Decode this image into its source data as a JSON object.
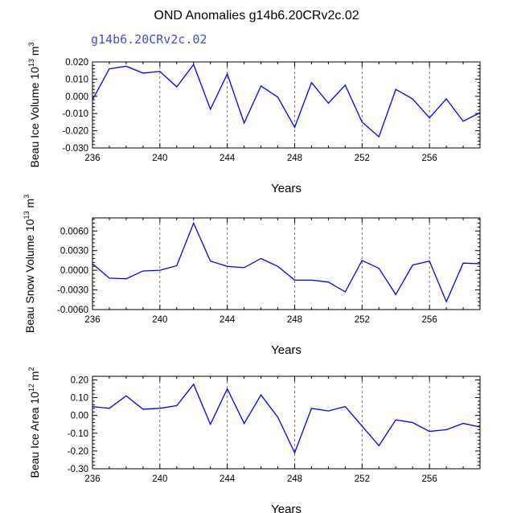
{
  "colors": {
    "line": "#0000ff",
    "subtitle": "#4b4bd2",
    "axis": "#000000",
    "ref_line": "#555555"
  },
  "figure": {
    "title": "OND Anomalies g14b6.20CRv2c.02",
    "subtitle": "g14b6.20CRv2c.02"
  },
  "chart_data": [
    {
      "type": "line",
      "title": "",
      "xlabel": "Years",
      "ylabel": {
        "text": "Beau Ice Volume 10",
        "exp": "13",
        "unit": " m",
        "unit_exp": "3"
      },
      "x": [
        236,
        237,
        238,
        239,
        240,
        241,
        242,
        243,
        244,
        245,
        246,
        247,
        248,
        249,
        250,
        251,
        252,
        253,
        254,
        255,
        256,
        257,
        258,
        259
      ],
      "series": [
        {
          "name": "Beau Ice Volume",
          "values": [
            -0.002,
            0.016,
            0.0175,
            0.0135,
            0.0145,
            0.0055,
            0.0185,
            -0.0075,
            0.013,
            -0.0155,
            0.006,
            -0.0005,
            -0.018,
            0.008,
            -0.004,
            0.0065,
            -0.015,
            -0.0235,
            0.004,
            -0.0015,
            -0.0125,
            -0.0015,
            -0.0145,
            -0.0095
          ]
        }
      ],
      "xlim": [
        236,
        259
      ],
      "ylim": [
        -0.03,
        0.02
      ],
      "xticks": [
        "236",
        "240",
        "244",
        "248",
        "252",
        "256"
      ],
      "yticks": [
        "0.020",
        "0.010",
        "0.000",
        "-0.010",
        "-0.020",
        "-0.030"
      ],
      "ref_lines_x": [
        240,
        244,
        248,
        252,
        256
      ]
    },
    {
      "type": "line",
      "title": "",
      "xlabel": "Years",
      "ylabel": {
        "text": "Beau Snow Volume 10",
        "exp": "13",
        "unit": " m",
        "unit_exp": "3"
      },
      "x": [
        236,
        237,
        238,
        239,
        240,
        241,
        242,
        243,
        244,
        245,
        246,
        247,
        248,
        249,
        250,
        251,
        252,
        253,
        254,
        255,
        256,
        257,
        258,
        259
      ],
      "series": [
        {
          "name": "Beau Snow Volume",
          "values": [
            0.001,
            -0.0012,
            -0.0013,
            -0.0001,
            0.0,
            0.0007,
            0.0072,
            0.0014,
            0.0006,
            0.0004,
            0.0018,
            0.0006,
            -0.0015,
            -0.0015,
            -0.0018,
            -0.0033,
            0.0015,
            0.0003,
            -0.0037,
            0.0008,
            0.0014,
            -0.0048,
            0.0011,
            0.001
          ]
        }
      ],
      "xlim": [
        236,
        259
      ],
      "ylim": [
        -0.006,
        0.008
      ],
      "xticks": [
        "236",
        "240",
        "244",
        "248",
        "252",
        "256"
      ],
      "yticks": [
        "0.0060",
        "0.0030",
        "0.0000",
        "-0.0030",
        "-0.0060"
      ],
      "ref_lines_x": [
        240,
        244,
        248,
        252,
        256
      ]
    },
    {
      "type": "line",
      "title": "",
      "xlabel": "Years",
      "ylabel": {
        "text": "Beau Ice Area 10",
        "exp": "12",
        "unit": " m",
        "unit_exp": "2"
      },
      "x": [
        236,
        237,
        238,
        239,
        240,
        241,
        242,
        243,
        244,
        245,
        246,
        247,
        248,
        249,
        250,
        251,
        252,
        253,
        254,
        255,
        256,
        257,
        258,
        259
      ],
      "series": [
        {
          "name": "Beau Ice Area",
          "values": [
            0.05,
            0.04,
            0.11,
            0.035,
            0.04,
            0.055,
            0.175,
            -0.05,
            0.15,
            -0.045,
            0.115,
            -0.01,
            -0.21,
            0.04,
            0.025,
            0.05,
            -0.06,
            -0.17,
            -0.025,
            -0.04,
            -0.09,
            -0.08,
            -0.045,
            -0.065
          ]
        }
      ],
      "xlim": [
        236,
        259
      ],
      "ylim": [
        -0.3,
        0.22
      ],
      "xticks": [
        "236",
        "240",
        "244",
        "248",
        "252",
        "256"
      ],
      "yticks": [
        "0.20",
        "0.10",
        "0.00",
        "-0.10",
        "-0.20",
        "-0.30"
      ],
      "ref_lines_x": [
        240,
        244,
        248,
        252,
        256
      ]
    }
  ]
}
